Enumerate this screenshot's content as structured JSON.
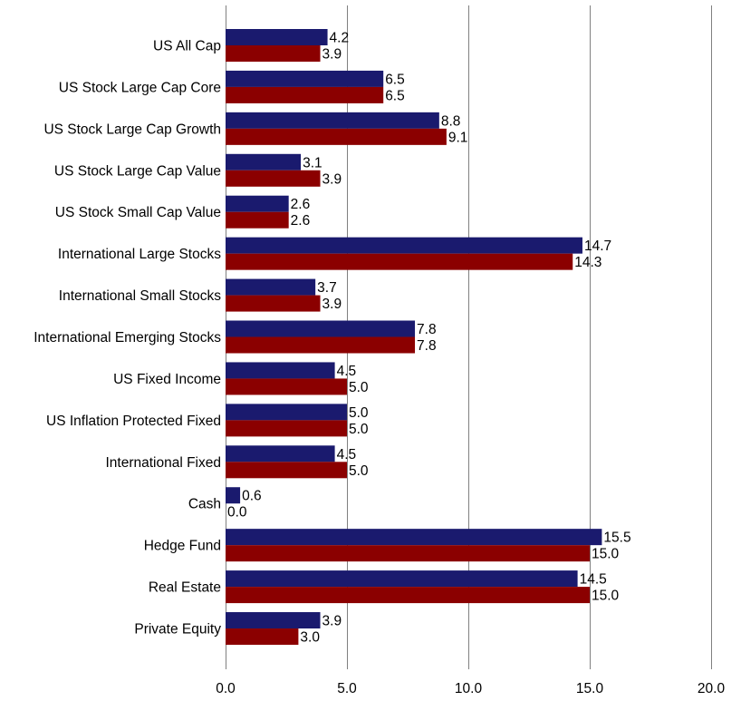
{
  "chart_data": {
    "type": "bar",
    "orientation": "horizontal",
    "categories": [
      "US All Cap",
      "US Stock Large Cap Core",
      "US Stock Large Cap Growth",
      "US Stock Large Cap Value",
      "US Stock Small Cap Value",
      "International Large Stocks",
      "International Small Stocks",
      "International Emerging Stocks",
      "US Fixed Income",
      "US Inflation Protected Fixed",
      "International Fixed",
      "Cash",
      "Hedge Fund",
      "Real Estate",
      "Private Equity"
    ],
    "series": [
      {
        "color": "#1a1a6e",
        "values": [
          4.2,
          6.5,
          8.8,
          3.1,
          2.6,
          14.7,
          3.7,
          7.8,
          4.5,
          5.0,
          4.5,
          0.6,
          15.5,
          14.5,
          3.9
        ],
        "labels": [
          "4.2",
          "6.5",
          "8.8",
          "3.1",
          "2.6",
          "14.7",
          "3.7",
          "7.8",
          "4.5",
          "5.0",
          "4.5",
          "0.6",
          "15.5",
          "14.5",
          "3.9"
        ]
      },
      {
        "color": "#8b0000",
        "values": [
          3.9,
          6.5,
          9.1,
          3.9,
          2.6,
          14.3,
          3.9,
          7.8,
          5.0,
          5.0,
          5.0,
          0.0,
          15.0,
          15.0,
          3.0
        ],
        "labels": [
          "3.9",
          "6.5",
          "9.1",
          "3.9",
          "2.6",
          "14.3",
          "3.9",
          "7.8",
          "5.0",
          "5.0",
          "5.0",
          "0.0",
          "15.0",
          "15.0",
          "3.0"
        ]
      }
    ],
    "xlim": [
      0,
      20
    ],
    "xticks": [
      "0.0",
      "5.0",
      "10.0",
      "15.0",
      "20.0"
    ],
    "xtick_values": [
      0,
      5,
      10,
      15,
      20
    ],
    "grid": true,
    "legend": "none"
  }
}
